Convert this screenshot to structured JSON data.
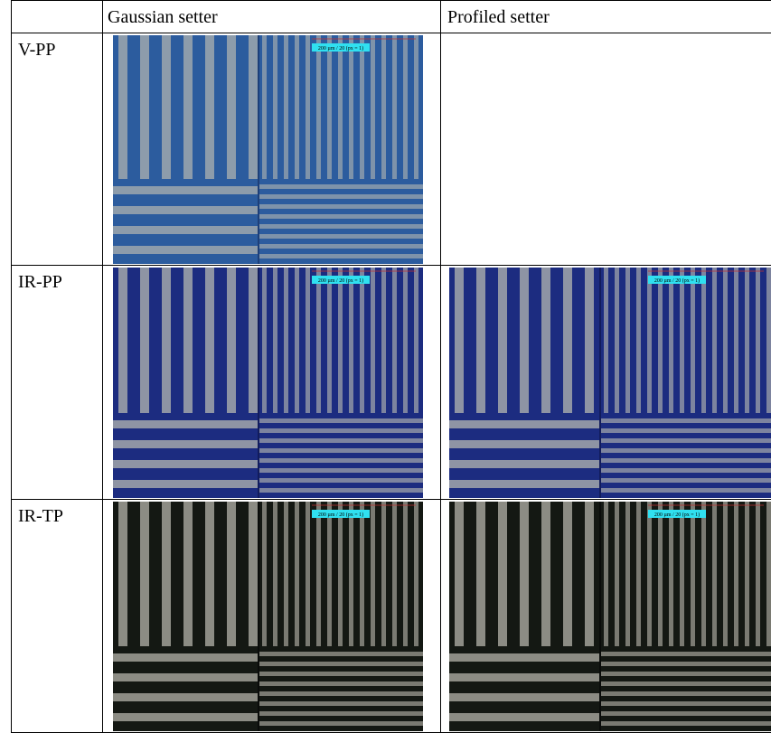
{
  "table": {
    "header": [
      "Gaussian setter",
      "Profiled setter"
    ],
    "rows": [
      {
        "label": "V-PP",
        "images": [
          {
            "scale_label": "200 µm / 20 (px = 1)"
          }
        ]
      },
      {
        "label": "IR-PP",
        "images": [
          {
            "scale_label": "200 µm / 20 (px = 1)"
          },
          {
            "scale_label": "200 µm / 20 (px = 1)"
          }
        ]
      },
      {
        "label": "IR-TP",
        "images": [
          {
            "scale_label": "200 µm / 20 (px = 1)"
          },
          {
            "scale_label": "200 µm / 20 (px = 1)"
          }
        ]
      }
    ]
  }
}
